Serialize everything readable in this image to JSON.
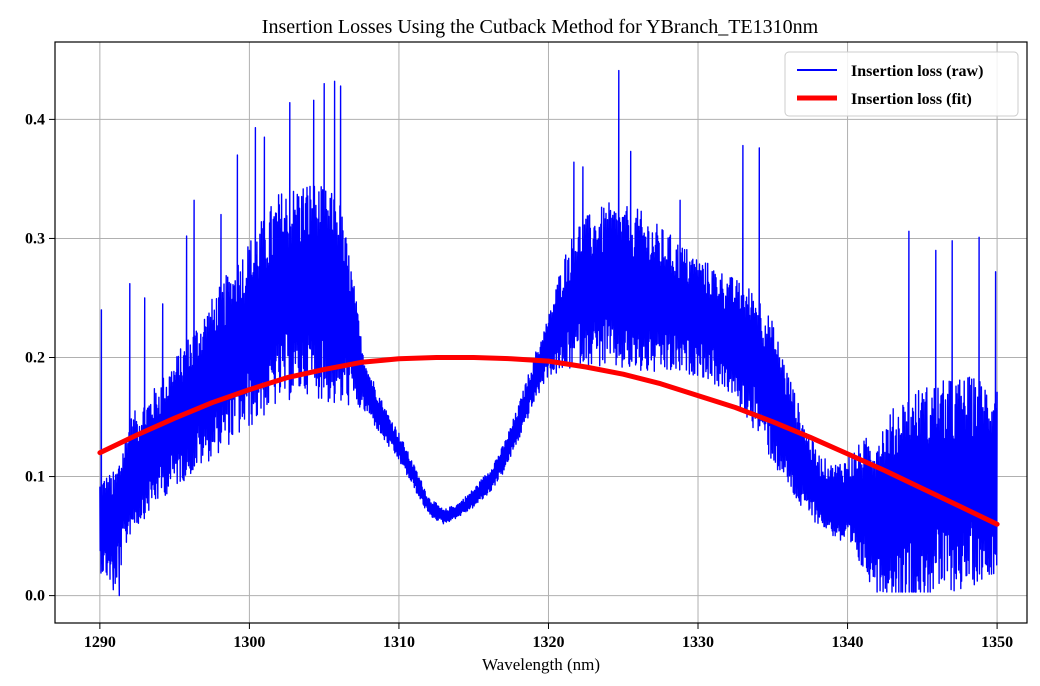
{
  "chart_data": {
    "type": "line",
    "title": "Insertion Losses Using the Cutback Method for YBranch_TE1310nm",
    "xlabel": "Wavelength (nm)",
    "ylabel": "",
    "xlim": [
      1287,
      1352
    ],
    "ylim": [
      -0.023,
      0.465
    ],
    "xticks": [
      1290,
      1300,
      1310,
      1320,
      1330,
      1340,
      1350
    ],
    "xtick_labels": [
      "1290",
      "1300",
      "1310",
      "1320",
      "1330",
      "1340",
      "1350"
    ],
    "yticks": [
      0.0,
      0.1,
      0.2,
      0.3,
      0.4
    ],
    "ytick_labels": [
      "0.0",
      "0.1",
      "0.2",
      "0.3",
      "0.4"
    ],
    "grid": true,
    "legend_position": "top-right",
    "series": [
      {
        "name": "Insertion loss (raw)",
        "color": "#0000ff",
        "style": "noisy",
        "envelope": {
          "x": [
            1290,
            1291,
            1292,
            1294,
            1296,
            1298,
            1300,
            1302,
            1304,
            1306,
            1306.8,
            1307.5,
            1308,
            1309,
            1310,
            1311,
            1312,
            1313,
            1314,
            1315,
            1316,
            1317,
            1318,
            1319,
            1320,
            1321,
            1322,
            1324,
            1326,
            1328,
            1330,
            1332,
            1334,
            1335,
            1336,
            1337,
            1338,
            1339,
            1340,
            1342,
            1344,
            1346,
            1348,
            1350
          ],
          "center": [
            0.06,
            0.055,
            0.1,
            0.13,
            0.16,
            0.19,
            0.22,
            0.25,
            0.26,
            0.245,
            0.22,
            0.185,
            0.17,
            0.145,
            0.125,
            0.1,
            0.075,
            0.066,
            0.072,
            0.082,
            0.095,
            0.115,
            0.145,
            0.18,
            0.21,
            0.235,
            0.255,
            0.26,
            0.255,
            0.245,
            0.235,
            0.22,
            0.195,
            0.17,
            0.14,
            0.11,
            0.09,
            0.08,
            0.078,
            0.072,
            0.082,
            0.09,
            0.095,
            0.1
          ],
          "amplitude": [
            0.04,
            0.05,
            0.05,
            0.05,
            0.06,
            0.07,
            0.08,
            0.09,
            0.09,
            0.09,
            0.06,
            0.03,
            0.02,
            0.015,
            0.012,
            0.01,
            0.008,
            0.006,
            0.006,
            0.008,
            0.01,
            0.012,
            0.015,
            0.02,
            0.025,
            0.05,
            0.06,
            0.07,
            0.07,
            0.06,
            0.05,
            0.05,
            0.06,
            0.06,
            0.05,
            0.04,
            0.03,
            0.03,
            0.04,
            0.07,
            0.09,
            0.09,
            0.09,
            0.08
          ]
        },
        "spikes": [
          {
            "x": 1290.1,
            "y": 0.24
          },
          {
            "x": 1290.9,
            "y": 0.005
          },
          {
            "x": 1291.3,
            "y": 0.0
          },
          {
            "x": 1292.0,
            "y": 0.262
          },
          {
            "x": 1293.0,
            "y": 0.25
          },
          {
            "x": 1294.2,
            "y": 0.245
          },
          {
            "x": 1295.8,
            "y": 0.302
          },
          {
            "x": 1296.3,
            "y": 0.332
          },
          {
            "x": 1298.1,
            "y": 0.32
          },
          {
            "x": 1299.2,
            "y": 0.37
          },
          {
            "x": 1300.4,
            "y": 0.393
          },
          {
            "x": 1301.0,
            "y": 0.385
          },
          {
            "x": 1302.7,
            "y": 0.414
          },
          {
            "x": 1304.3,
            "y": 0.416
          },
          {
            "x": 1305.0,
            "y": 0.43
          },
          {
            "x": 1305.7,
            "y": 0.432
          },
          {
            "x": 1306.1,
            "y": 0.428
          },
          {
            "x": 1321.7,
            "y": 0.364
          },
          {
            "x": 1322.3,
            "y": 0.36
          },
          {
            "x": 1324.7,
            "y": 0.441
          },
          {
            "x": 1325.5,
            "y": 0.373
          },
          {
            "x": 1328.8,
            "y": 0.332
          },
          {
            "x": 1333.0,
            "y": 0.378
          },
          {
            "x": 1334.1,
            "y": 0.376
          },
          {
            "x": 1344.1,
            "y": 0.306
          },
          {
            "x": 1345.9,
            "y": 0.29
          },
          {
            "x": 1347.0,
            "y": 0.298
          },
          {
            "x": 1348.8,
            "y": 0.301
          },
          {
            "x": 1349.9,
            "y": 0.272
          },
          {
            "x": 1343.1,
            "y": 0.028
          }
        ]
      },
      {
        "name": "Insertion loss (fit)",
        "color": "#ff0000",
        "style": "smooth",
        "x": [
          1290,
          1292.5,
          1295,
          1297.5,
          1300,
          1302.5,
          1305,
          1307.5,
          1310,
          1312.5,
          1315,
          1317.5,
          1320,
          1322.5,
          1325,
          1327.5,
          1330,
          1332.5,
          1335,
          1337.5,
          1340,
          1342.5,
          1345,
          1347.5,
          1350
        ],
        "y": [
          0.12,
          0.135,
          0.149,
          0.162,
          0.173,
          0.183,
          0.19,
          0.196,
          0.199,
          0.2,
          0.2,
          0.199,
          0.197,
          0.192,
          0.186,
          0.178,
          0.168,
          0.158,
          0.146,
          0.133,
          0.119,
          0.105,
          0.09,
          0.075,
          0.06
        ]
      }
    ]
  }
}
